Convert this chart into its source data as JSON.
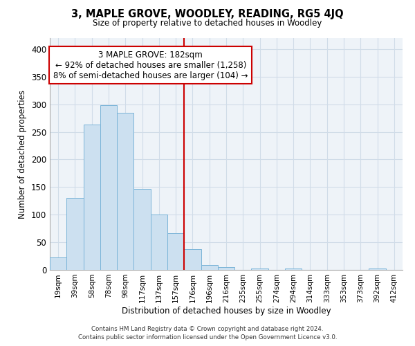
{
  "title": "3, MAPLE GROVE, WOODLEY, READING, RG5 4JQ",
  "subtitle": "Size of property relative to detached houses in Woodley",
  "xlabel": "Distribution of detached houses by size in Woodley",
  "ylabel": "Number of detached properties",
  "bar_labels": [
    "19sqm",
    "39sqm",
    "58sqm",
    "78sqm",
    "98sqm",
    "117sqm",
    "137sqm",
    "157sqm",
    "176sqm",
    "196sqm",
    "216sqm",
    "235sqm",
    "255sqm",
    "274sqm",
    "294sqm",
    "314sqm",
    "333sqm",
    "353sqm",
    "373sqm",
    "392sqm",
    "412sqm"
  ],
  "bar_heights": [
    22,
    130,
    263,
    298,
    285,
    147,
    100,
    67,
    38,
    9,
    5,
    0,
    3,
    0,
    3,
    0,
    0,
    0,
    0,
    3,
    0
  ],
  "bar_color": "#cce0f0",
  "bar_edge_color": "#7ab4d8",
  "vline_color": "#cc0000",
  "annotation_title": "3 MAPLE GROVE: 182sqm",
  "annotation_line1": "← 92% of detached houses are smaller (1,258)",
  "annotation_line2": "8% of semi-detached houses are larger (104) →",
  "annotation_box_color": "#ffffff",
  "annotation_box_edge": "#cc0000",
  "ylim": [
    0,
    420
  ],
  "yticks": [
    0,
    50,
    100,
    150,
    200,
    250,
    300,
    350,
    400
  ],
  "grid_color": "#d0dce8",
  "bg_color": "#eef3f8",
  "footer1": "Contains HM Land Registry data © Crown copyright and database right 2024.",
  "footer2": "Contains public sector information licensed under the Open Government Licence v3.0."
}
